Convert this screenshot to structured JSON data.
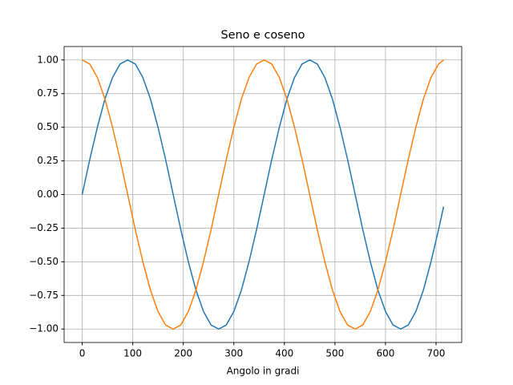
{
  "chart_data": {
    "type": "line",
    "title": "Seno e coseno",
    "xlabel": "Angolo in gradi",
    "x": [
      0,
      15,
      30,
      45,
      60,
      75,
      90,
      105,
      120,
      135,
      150,
      165,
      180,
      195,
      210,
      225,
      240,
      255,
      270,
      285,
      300,
      315,
      330,
      345,
      360,
      375,
      390,
      405,
      420,
      435,
      450,
      465,
      480,
      495,
      510,
      525,
      540,
      555,
      570,
      585,
      600,
      615,
      630,
      645,
      660,
      675,
      690,
      705,
      715
    ],
    "series": [
      {
        "color": "#1f77b4",
        "values": [
          0,
          0.26,
          0.5,
          0.71,
          0.87,
          0.97,
          1,
          0.97,
          0.87,
          0.71,
          0.5,
          0.26,
          0,
          -0.26,
          -0.5,
          -0.71,
          -0.87,
          -0.97,
          -1,
          -0.97,
          -0.87,
          -0.71,
          -0.5,
          -0.26,
          0,
          0.26,
          0.5,
          0.71,
          0.87,
          0.97,
          1,
          0.97,
          0.87,
          0.71,
          0.5,
          0.26,
          0,
          -0.26,
          -0.5,
          -0.71,
          -0.87,
          -0.97,
          -1,
          -0.97,
          -0.87,
          -0.71,
          -0.5,
          -0.26,
          -0.09
        ]
      },
      {
        "color": "#ff7f0e",
        "values": [
          1,
          0.97,
          0.87,
          0.71,
          0.5,
          0.26,
          0,
          -0.26,
          -0.5,
          -0.71,
          -0.87,
          -0.97,
          -1,
          -0.97,
          -0.87,
          -0.71,
          -0.5,
          -0.26,
          0,
          0.26,
          0.5,
          0.71,
          0.87,
          0.97,
          1,
          0.97,
          0.87,
          0.71,
          0.5,
          0.26,
          0,
          -0.26,
          -0.5,
          -0.71,
          -0.87,
          -0.97,
          -1,
          -0.97,
          -0.87,
          -0.71,
          -0.5,
          -0.26,
          0,
          0.26,
          0.5,
          0.71,
          0.87,
          0.97,
          1
        ]
      }
    ],
    "xlim": [
      -35.75,
      750.75
    ],
    "ylim": [
      -1.1,
      1.1
    ],
    "xticks": [
      0,
      100,
      200,
      300,
      400,
      500,
      600,
      700
    ],
    "yticks": [
      {
        "value": -1,
        "label": "−1.00"
      },
      {
        "value": -0.75,
        "label": "−0.75"
      },
      {
        "value": -0.5,
        "label": "−0.50"
      },
      {
        "value": -0.25,
        "label": "−0.25"
      },
      {
        "value": 0,
        "label": "0.00"
      },
      {
        "value": 0.25,
        "label": "0.25"
      },
      {
        "value": 0.5,
        "label": "0.50"
      },
      {
        "value": 0.75,
        "label": "0.75"
      },
      {
        "value": 1,
        "label": "1.00"
      }
    ],
    "grid": true
  }
}
